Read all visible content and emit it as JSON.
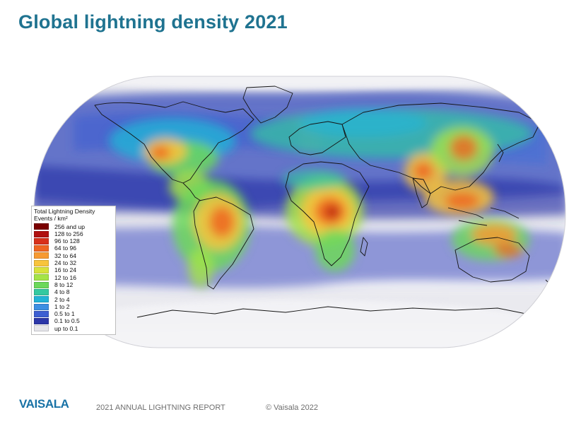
{
  "title": "Global lightning density 2021",
  "legend": {
    "title": "Total Lightning Density",
    "unit": "Events / km²",
    "items": [
      {
        "label": "256 and up",
        "color": "#7a0000"
      },
      {
        "label": "128 to 256",
        "color": "#b01010"
      },
      {
        "label": "96 to 128",
        "color": "#d8301a"
      },
      {
        "label": "64 to 96",
        "color": "#ef6521"
      },
      {
        "label": "32 to 64",
        "color": "#f79a32"
      },
      {
        "label": "24 to 32",
        "color": "#f8c43c"
      },
      {
        "label": "16 to 24",
        "color": "#d8e23a"
      },
      {
        "label": "12 to 16",
        "color": "#a4e447"
      },
      {
        "label": "8 to 12",
        "color": "#6cd85a"
      },
      {
        "label": "4 to 8",
        "color": "#34c9a0"
      },
      {
        "label": "2 to 4",
        "color": "#22b3d6"
      },
      {
        "label": "1 to 2",
        "color": "#3d8fe2"
      },
      {
        "label": "0.5 to 1",
        "color": "#3d5fd2"
      },
      {
        "label": "0.1 to 0.5",
        "color": "#2c37a8"
      },
      {
        "label": "up to 0.1",
        "color": "#e6e6ea"
      }
    ]
  },
  "footer": {
    "logo": "VAISALA",
    "report": "2021 ANNUAL LIGHTNING REPORT",
    "copyright": "© Vaisala 2022"
  }
}
